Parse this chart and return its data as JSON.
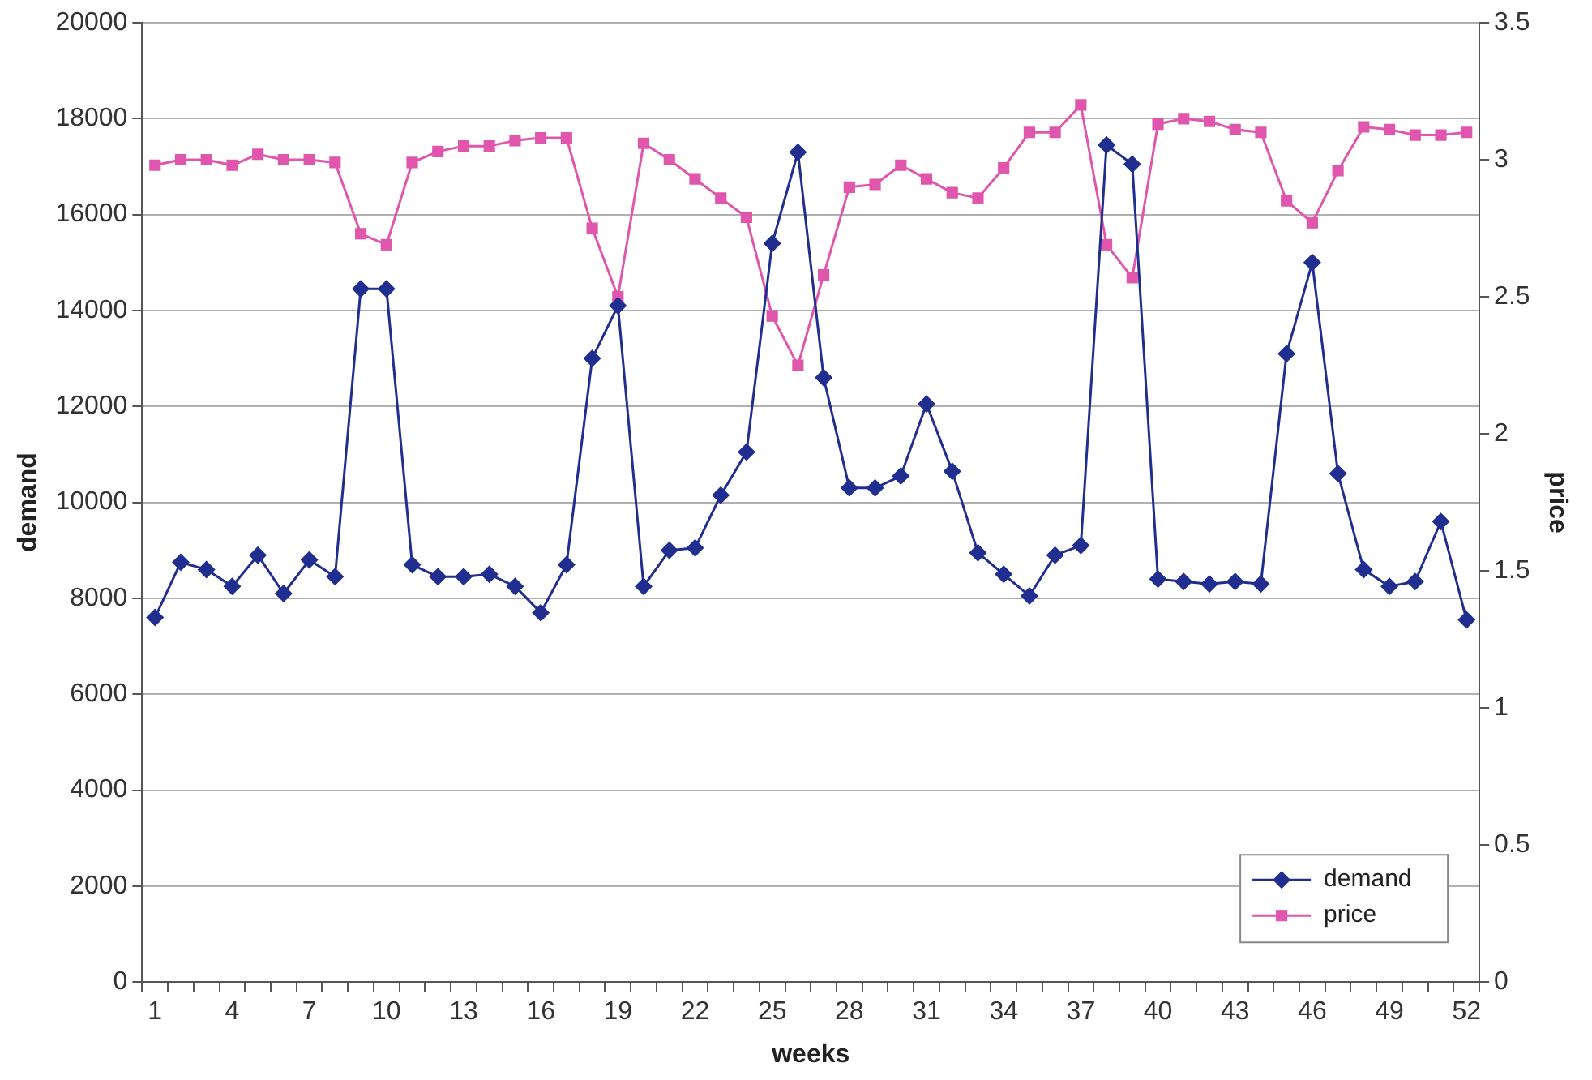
{
  "chart_data": {
    "type": "line",
    "xlabel": "weeks",
    "ylabel": "demand",
    "y2label": "price",
    "categories": [
      "1",
      null,
      null,
      "4",
      null,
      null,
      "7",
      null,
      null,
      "10",
      null,
      null,
      "13",
      null,
      null,
      "16",
      null,
      null,
      "19",
      null,
      null,
      "22",
      null,
      null,
      "25",
      null,
      null,
      "28",
      null,
      null,
      "31",
      null,
      null,
      "34",
      null,
      null,
      "37",
      null,
      null,
      "40",
      null,
      null,
      "43",
      null,
      null,
      "46",
      null,
      null,
      "49",
      null,
      null,
      "52"
    ],
    "series": [
      {
        "name": "demand",
        "color": "#1f2e8f",
        "marker": "diamond",
        "values": [
          7600,
          8750,
          8600,
          8250,
          8900,
          8100,
          8800,
          8450,
          14450,
          14450,
          8700,
          8450,
          8450,
          8500,
          8250,
          7700,
          8700,
          13000,
          14100,
          8250,
          9000,
          9050,
          10150,
          11050,
          15400,
          17300,
          12600,
          10300,
          10300,
          10550,
          12050,
          10650,
          8950,
          8500,
          8050,
          8900,
          9100,
          17450,
          17050,
          8400,
          8350,
          8300,
          8350,
          8300,
          13100,
          15000,
          10600,
          8600,
          8250,
          8350,
          9600,
          7550
        ]
      },
      {
        "name": "price",
        "color": "#e056ac",
        "marker": "square",
        "axis": "y2",
        "values": [
          2.98,
          3.0,
          3.0,
          2.98,
          3.02,
          3.0,
          3.0,
          2.99,
          2.73,
          2.69,
          2.99,
          3.03,
          3.05,
          3.05,
          3.07,
          3.08,
          3.08,
          2.75,
          2.5,
          3.06,
          3.0,
          2.93,
          2.86,
          2.79,
          2.43,
          2.25,
          2.58,
          2.9,
          2.91,
          2.98,
          2.93,
          2.88,
          2.86,
          2.97,
          3.1,
          3.1,
          3.2,
          2.69,
          2.57,
          3.13,
          3.15,
          3.14,
          3.11,
          3.1,
          2.85,
          2.77,
          2.96,
          3.12,
          3.11,
          3.09,
          3.09,
          3.1
        ]
      }
    ],
    "ylim": [
      0,
      20000
    ],
    "yticks": [
      0,
      2000,
      4000,
      6000,
      8000,
      10000,
      12000,
      14000,
      16000,
      18000,
      20000
    ],
    "y2lim": [
      0,
      3.5
    ],
    "y2ticks": [
      0,
      0.5,
      1,
      1.5,
      2,
      2.5,
      3,
      3.5
    ],
    "grid": "y",
    "legend": "bottom right"
  }
}
